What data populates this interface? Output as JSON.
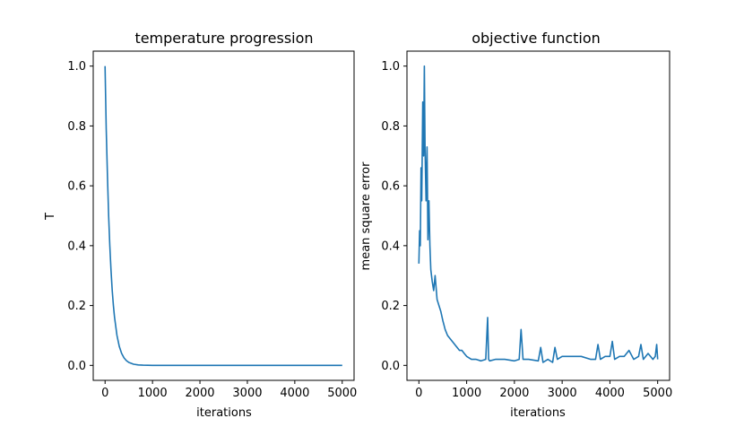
{
  "colors": {
    "line": "#1f77b4",
    "axes": "#000000",
    "background": "#ffffff"
  },
  "chart_data": [
    {
      "type": "line",
      "title": "temperature progression",
      "xlabel": "iterations",
      "ylabel": "T",
      "xlim": [
        -250,
        5250
      ],
      "ylim": [
        -0.05,
        1.05
      ],
      "xticks": [
        0,
        1000,
        2000,
        3000,
        4000,
        5000
      ],
      "yticks": [
        0.0,
        0.2,
        0.4,
        0.6,
        0.8,
        1.0
      ],
      "xtick_labels": [
        "0",
        "1000",
        "2000",
        "3000",
        "4000",
        "5000"
      ],
      "ytick_labels": [
        "0.0",
        "0.2",
        "0.4",
        "0.6",
        "0.8",
        "1.0"
      ],
      "grid": false,
      "series": [
        {
          "color": "#1f77b4",
          "x": [
            0,
            25,
            50,
            75,
            100,
            125,
            150,
            175,
            200,
            250,
            300,
            350,
            400,
            450,
            500,
            600,
            700,
            800,
            1000,
            1500,
            2000,
            3000,
            4000,
            5000
          ],
          "y": [
            1.0,
            0.79,
            0.63,
            0.5,
            0.4,
            0.32,
            0.25,
            0.2,
            0.16,
            0.1,
            0.063,
            0.04,
            0.025,
            0.016,
            0.01,
            0.004,
            0.0016,
            0.0006,
            0.0001,
            0.0,
            0.0,
            0.0,
            0.0,
            0.0
          ]
        }
      ]
    },
    {
      "type": "line",
      "title": "objective function",
      "xlabel": "iterations",
      "ylabel": "mean square error",
      "xlim": [
        -250,
        5250
      ],
      "ylim": [
        -0.05,
        1.05
      ],
      "xticks": [
        0,
        1000,
        2000,
        3000,
        4000,
        5000
      ],
      "yticks": [
        0.0,
        0.2,
        0.4,
        0.6,
        0.8,
        1.0
      ],
      "xtick_labels": [
        "0",
        "1000",
        "2000",
        "3000",
        "4000",
        "5000"
      ],
      "ytick_labels": [
        "0.0",
        "0.2",
        "0.4",
        "0.6",
        "0.8",
        "1.0"
      ],
      "grid": false,
      "series": [
        {
          "color": "#1f77b4",
          "x": [
            0,
            15,
            30,
            45,
            60,
            80,
            100,
            115,
            130,
            150,
            170,
            190,
            210,
            230,
            250,
            280,
            310,
            340,
            380,
            420,
            460,
            500,
            550,
            600,
            650,
            700,
            750,
            800,
            850,
            900,
            950,
            1000,
            1100,
            1200,
            1300,
            1400,
            1440,
            1460,
            1480,
            1600,
            1800,
            2000,
            2100,
            2140,
            2180,
            2300,
            2500,
            2550,
            2600,
            2700,
            2800,
            2850,
            2900,
            3000,
            3100,
            3200,
            3400,
            3600,
            3700,
            3750,
            3800,
            3900,
            4000,
            4050,
            4100,
            4200,
            4300,
            4400,
            4500,
            4600,
            4650,
            4700,
            4800,
            4900,
            4950,
            4980,
            5000
          ],
          "y": [
            0.34,
            0.45,
            0.4,
            0.66,
            0.55,
            0.88,
            0.7,
            1.0,
            0.72,
            0.55,
            0.73,
            0.42,
            0.55,
            0.4,
            0.32,
            0.28,
            0.25,
            0.3,
            0.22,
            0.2,
            0.18,
            0.15,
            0.12,
            0.1,
            0.09,
            0.08,
            0.07,
            0.06,
            0.05,
            0.05,
            0.04,
            0.03,
            0.02,
            0.02,
            0.015,
            0.02,
            0.16,
            0.02,
            0.015,
            0.02,
            0.02,
            0.015,
            0.02,
            0.12,
            0.02,
            0.02,
            0.015,
            0.06,
            0.01,
            0.02,
            0.01,
            0.06,
            0.02,
            0.03,
            0.03,
            0.03,
            0.03,
            0.02,
            0.02,
            0.07,
            0.02,
            0.03,
            0.03,
            0.08,
            0.02,
            0.03,
            0.03,
            0.05,
            0.02,
            0.03,
            0.07,
            0.02,
            0.04,
            0.02,
            0.03,
            0.07,
            0.02
          ]
        }
      ]
    }
  ]
}
